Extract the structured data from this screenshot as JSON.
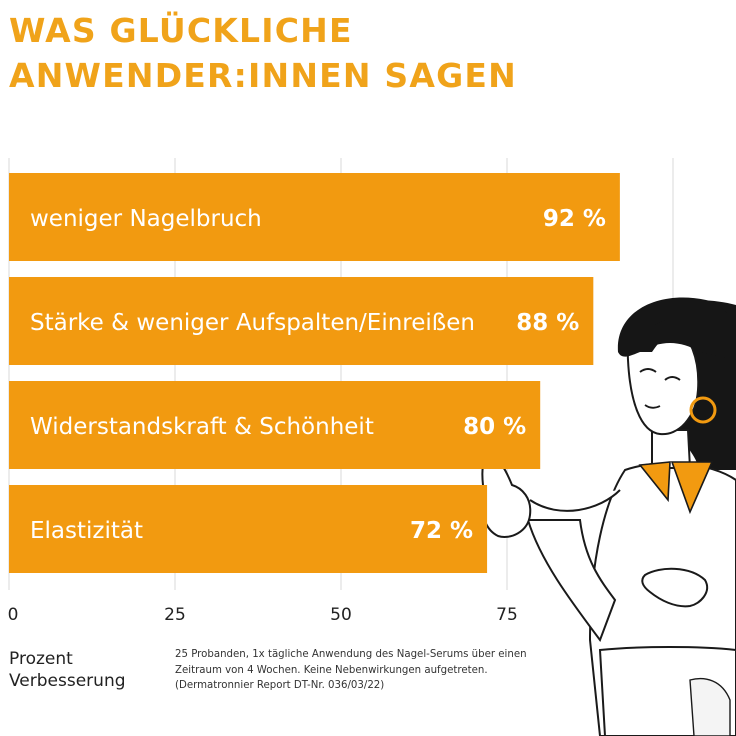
{
  "header": {
    "title_line1": "WAS GLÜCKLICHE",
    "title_line2": "ANWENDER:INNEN SAGEN"
  },
  "colors": {
    "accent": "#f0a31a",
    "bar": "#f29a10",
    "bar_text": "#ffffff",
    "grid": "#d9d9d9"
  },
  "chart_data": {
    "type": "bar",
    "orientation": "horizontal",
    "categories": [
      "weniger Nagelbruch",
      "Stärke & weniger Aufspalten/Einreißen",
      "Widerstandskraft & Schönheit",
      "Elastizität"
    ],
    "values": [
      92,
      88,
      80,
      72
    ],
    "value_labels": [
      "92 %",
      "88 %",
      "80 %",
      "72 %"
    ],
    "xlim": [
      0,
      100
    ],
    "xticks": [
      0,
      25,
      50,
      75
    ],
    "xtick_labels": [
      "0",
      "25",
      "50",
      "75"
    ],
    "grid": true,
    "xlabel": "Prozent Verbesserung"
  },
  "axis_label": {
    "line1": "Prozent",
    "line2": "Verbesserung"
  },
  "footnote": "25 Probanden, 1x tägliche Anwendung des Nagel-Serums über einen Zeitraum von 4 Wochen. Keine Nebenwirkungen aufgetreten. (Dermatronnier Report DT-Nr. 036/03/22)"
}
